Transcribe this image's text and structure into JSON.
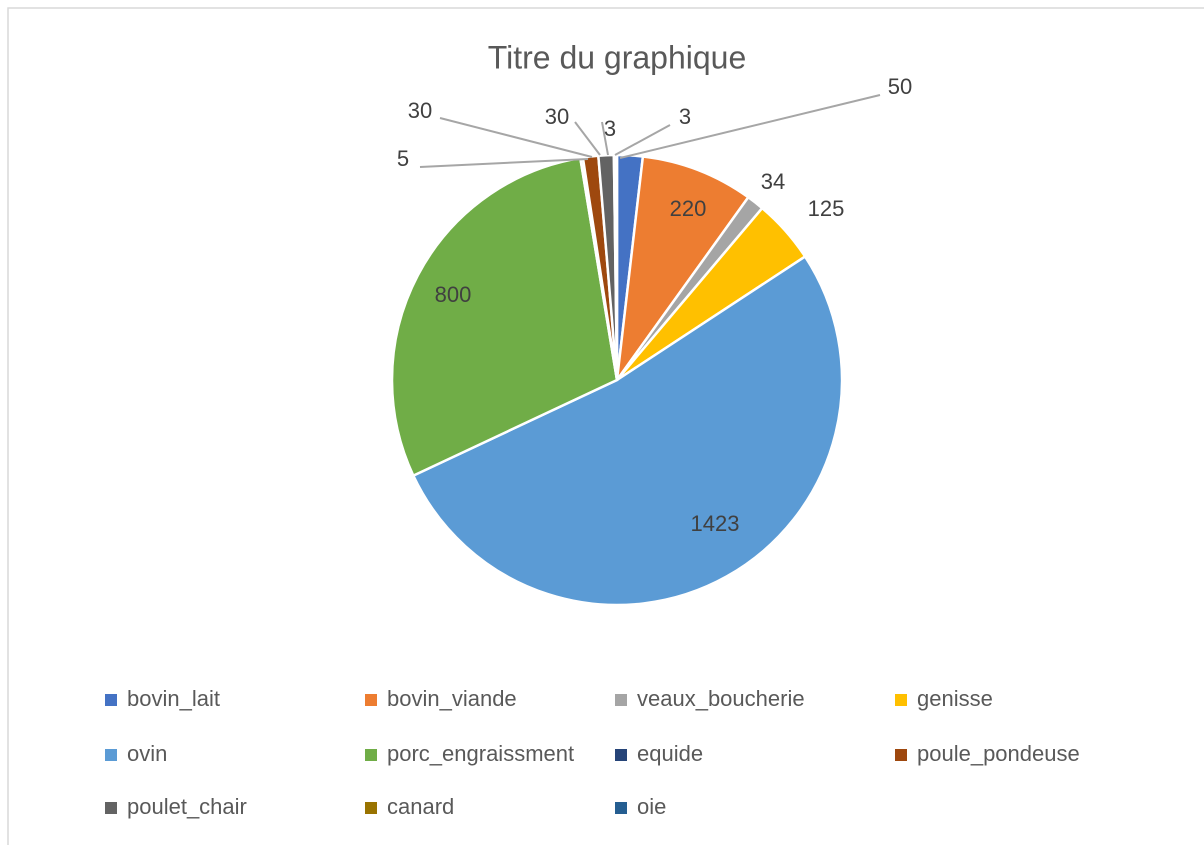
{
  "chart_data": {
    "type": "pie",
    "title": "Titre du graphique",
    "categories": [
      "bovin_lait",
      "bovin_viande",
      "veaux_boucherie",
      "genisse",
      "ovin",
      "porc_engraissment",
      "equide",
      "poule_pondeuse",
      "poulet_chair",
      "canard",
      "oie"
    ],
    "values": [
      50,
      220,
      34,
      125,
      1423,
      800,
      5,
      30,
      30,
      3,
      3
    ],
    "colors": [
      "#4472c4",
      "#ed7d31",
      "#a5a5a5",
      "#ffc000",
      "#5b9bd5",
      "#70ad47",
      "#264478",
      "#9e480e",
      "#636363",
      "#997300",
      "#255e91"
    ],
    "legend": "bottom"
  }
}
